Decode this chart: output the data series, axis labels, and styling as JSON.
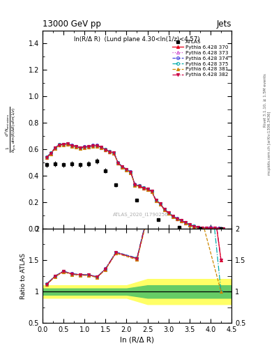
{
  "title_top": "13000 GeV pp",
  "title_right": "Jets",
  "plot_title": "ln(R/Δ R)  (Lund plane 4.30<ln(1/z)<4.57)",
  "watermark": "ATLAS_2020_I1790256",
  "right_label1": "Rivet 3.1.10, ≥ 1.5M events",
  "right_label2": "mcplots.cern.ch [arXiv:1306.3436]",
  "ylabel_main": "$\\frac{1}{N_{\\mathrm{jets}}}\\frac{d^2 N_{\\mathrm{emissions}}}{d\\ln(R/\\Delta R)\\,d\\ln(1/z)}$",
  "ylabel_ratio": "Ratio to ATLAS",
  "xlabel": "ln (R/Δ R)",
  "xlim": [
    0,
    4.5
  ],
  "ylim_main": [
    0,
    1.5
  ],
  "ylim_ratio": [
    0.5,
    2.0
  ],
  "atlas_x": [
    0.1,
    0.3,
    0.5,
    0.7,
    0.9,
    1.1,
    1.3,
    1.5,
    1.75,
    2.25,
    2.75,
    3.25,
    3.75,
    4.25
  ],
  "atlas_y": [
    0.483,
    0.49,
    0.483,
    0.49,
    0.483,
    0.49,
    0.51,
    0.44,
    0.33,
    0.215,
    0.07,
    0.01,
    0.002,
    0.001
  ],
  "atlas_yerr_lo": [
    0.02,
    0.02,
    0.02,
    0.02,
    0.02,
    0.02,
    0.02,
    0.02,
    0.015,
    0.01,
    0.005,
    0.002,
    0.001,
    0.001
  ],
  "atlas_yerr_hi": [
    0.02,
    0.02,
    0.02,
    0.02,
    0.02,
    0.02,
    0.02,
    0.02,
    0.015,
    0.01,
    0.005,
    0.002,
    0.001,
    0.001
  ],
  "mc_x": [
    0.1,
    0.2,
    0.3,
    0.4,
    0.5,
    0.6,
    0.7,
    0.8,
    0.9,
    1.0,
    1.1,
    1.2,
    1.3,
    1.4,
    1.5,
    1.6,
    1.7,
    1.8,
    1.9,
    2.0,
    2.1,
    2.2,
    2.3,
    2.4,
    2.5,
    2.6,
    2.7,
    2.8,
    2.9,
    3.0,
    3.1,
    3.2,
    3.3,
    3.4,
    3.5,
    3.6,
    3.7,
    3.8,
    3.9,
    4.0,
    4.1,
    4.2,
    4.3
  ],
  "py370_y": [
    0.54,
    0.57,
    0.61,
    0.635,
    0.638,
    0.642,
    0.628,
    0.622,
    0.612,
    0.618,
    0.62,
    0.628,
    0.628,
    0.615,
    0.598,
    0.582,
    0.572,
    0.498,
    0.468,
    0.448,
    0.428,
    0.333,
    0.323,
    0.308,
    0.298,
    0.283,
    0.215,
    0.19,
    0.145,
    0.12,
    0.095,
    0.075,
    0.062,
    0.045,
    0.03,
    0.018,
    0.01,
    0.006,
    0.004,
    0.003,
    0.002,
    0.002,
    0.001
  ],
  "py373_y": [
    0.538,
    0.568,
    0.608,
    0.633,
    0.636,
    0.64,
    0.626,
    0.62,
    0.61,
    0.616,
    0.618,
    0.626,
    0.626,
    0.613,
    0.596,
    0.58,
    0.57,
    0.496,
    0.466,
    0.446,
    0.426,
    0.331,
    0.321,
    0.306,
    0.296,
    0.281,
    0.213,
    0.188,
    0.143,
    0.118,
    0.093,
    0.073,
    0.06,
    0.043,
    0.028,
    0.016,
    0.008,
    0.005,
    0.004,
    0.004,
    0.003,
    0.003,
    0.002
  ],
  "py374_y": [
    0.542,
    0.572,
    0.612,
    0.637,
    0.64,
    0.644,
    0.63,
    0.624,
    0.614,
    0.62,
    0.622,
    0.63,
    0.63,
    0.617,
    0.6,
    0.584,
    0.574,
    0.5,
    0.47,
    0.45,
    0.43,
    0.335,
    0.325,
    0.31,
    0.3,
    0.285,
    0.217,
    0.192,
    0.147,
    0.122,
    0.097,
    0.077,
    0.064,
    0.047,
    0.032,
    0.02,
    0.012,
    0.007,
    0.006,
    0.012,
    0.006,
    0.004,
    0.002
  ],
  "py375_y": [
    0.542,
    0.572,
    0.612,
    0.636,
    0.639,
    0.643,
    0.629,
    0.623,
    0.613,
    0.619,
    0.621,
    0.629,
    0.629,
    0.616,
    0.599,
    0.583,
    0.573,
    0.499,
    0.469,
    0.449,
    0.429,
    0.334,
    0.324,
    0.309,
    0.299,
    0.284,
    0.216,
    0.191,
    0.146,
    0.121,
    0.096,
    0.076,
    0.063,
    0.046,
    0.031,
    0.019,
    0.011,
    0.006,
    0.003,
    0.001,
    0.002,
    0.001,
    0.001
  ],
  "py381_y": [
    0.536,
    0.566,
    0.606,
    0.631,
    0.634,
    0.638,
    0.624,
    0.618,
    0.608,
    0.614,
    0.616,
    0.624,
    0.624,
    0.611,
    0.594,
    0.578,
    0.568,
    0.494,
    0.464,
    0.444,
    0.424,
    0.329,
    0.319,
    0.304,
    0.294,
    0.279,
    0.211,
    0.186,
    0.141,
    0.116,
    0.091,
    0.071,
    0.058,
    0.041,
    0.026,
    0.014,
    0.006,
    0.003,
    0.002,
    0.001,
    0.001,
    0.001,
    0.001
  ],
  "py382_y": [
    0.54,
    0.57,
    0.61,
    0.635,
    0.638,
    0.642,
    0.628,
    0.622,
    0.612,
    0.618,
    0.62,
    0.628,
    0.628,
    0.615,
    0.598,
    0.582,
    0.572,
    0.498,
    0.468,
    0.448,
    0.428,
    0.333,
    0.323,
    0.308,
    0.298,
    0.283,
    0.215,
    0.19,
    0.145,
    0.12,
    0.095,
    0.075,
    0.062,
    0.045,
    0.03,
    0.018,
    0.01,
    0.006,
    0.004,
    0.003,
    0.003,
    0.002,
    0.001
  ],
  "band_x": [
    0.0,
    0.5,
    1.0,
    1.5,
    2.0,
    2.5,
    3.0,
    3.5,
    4.0,
    4.5
  ],
  "green_band_lo": [
    0.95,
    0.95,
    0.95,
    0.95,
    0.95,
    0.9,
    0.9,
    0.9,
    0.9,
    0.9
  ],
  "green_band_hi": [
    1.05,
    1.05,
    1.05,
    1.05,
    1.05,
    1.1,
    1.1,
    1.1,
    1.1,
    1.1
  ],
  "yellow_band_lo": [
    0.9,
    0.9,
    0.9,
    0.9,
    0.9,
    0.8,
    0.8,
    0.8,
    0.8,
    0.8
  ],
  "yellow_band_hi": [
    1.1,
    1.1,
    1.1,
    1.1,
    1.1,
    1.2,
    1.2,
    1.2,
    1.2,
    1.2
  ],
  "colors": {
    "py370": "#e8001a",
    "py373": "#cc44cc",
    "py374": "#4444dd",
    "py375": "#00aaaa",
    "py381": "#cc8800",
    "py382": "#cc0044"
  },
  "linestyles": {
    "py370": "-",
    "py373": ":",
    "py374": "--",
    "py375": "-.",
    "py381": "--",
    "py382": "-."
  },
  "markers": {
    "py370": "^",
    "py373": "^",
    "py374": "o",
    "py375": "o",
    "py381": "^",
    "py382": "v"
  },
  "markerfacecolors": {
    "py370": "#e8001a",
    "py373": "none",
    "py374": "none",
    "py375": "none",
    "py381": "#cc8800",
    "py382": "#cc0044"
  },
  "labels": {
    "py370": "Pythia 6.428 370",
    "py373": "Pythia 6.428 373",
    "py374": "Pythia 6.428 374",
    "py375": "Pythia 6.428 375",
    "py381": "Pythia 6.428 381",
    "py382": "Pythia 6.428 382"
  }
}
